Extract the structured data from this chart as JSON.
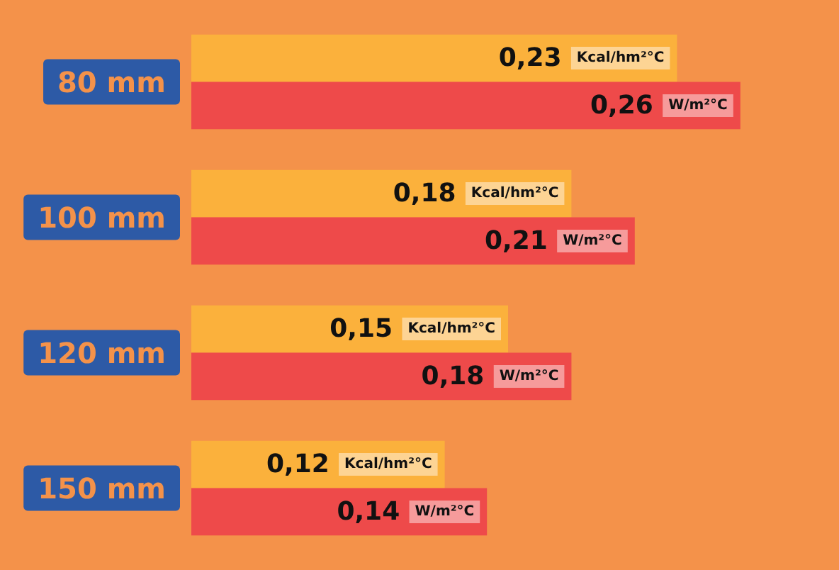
{
  "chart_data": {
    "type": "bar",
    "orientation": "horizontal",
    "categories": [
      "80 mm",
      "100 mm",
      "120 mm",
      "150 mm"
    ],
    "series": [
      {
        "name": "Kcal/hm²°C",
        "color": "#fbb13c",
        "values": [
          0.23,
          0.18,
          0.15,
          0.12
        ],
        "value_labels": [
          "0,23",
          "0,18",
          "0,15",
          "0,12"
        ]
      },
      {
        "name": "W/m²°C",
        "color": "#ee4a4a",
        "values": [
          0.26,
          0.21,
          0.18,
          0.14
        ],
        "value_labels": [
          "0,26",
          "0,21",
          "0,18",
          "0,14"
        ]
      }
    ],
    "legend": false
  }
}
